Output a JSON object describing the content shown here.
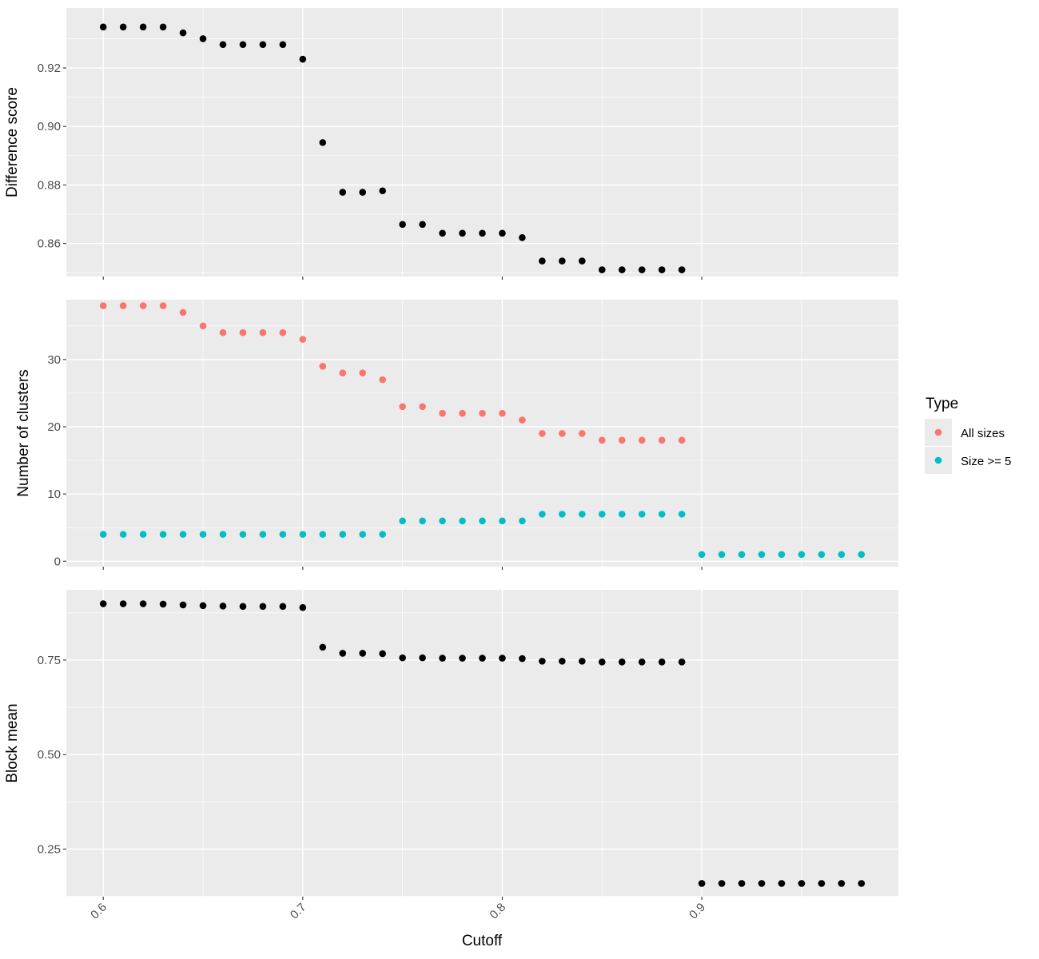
{
  "chart_data": {
    "type": "scatter",
    "x_label": "Cutoff",
    "x_ticks": [
      "0.6",
      "0.7",
      "0.8",
      "0.9"
    ],
    "x_tick_values": [
      0.6,
      0.7,
      0.8,
      0.9
    ],
    "xlim": [
      0.5815,
      0.9985
    ],
    "colors": {
      "black": "#000000",
      "all_sizes": "#F8766D",
      "size_ge_5": "#00BFC4"
    },
    "legend": {
      "title": "Type",
      "position": "right",
      "entries": [
        {
          "label": "All sizes",
          "color": "#F8766D"
        },
        {
          "label": "Size >= 5",
          "color": "#00BFC4"
        }
      ]
    },
    "panels": [
      {
        "ylabel": "Difference score",
        "ylim": [
          0.8487,
          0.9405
        ],
        "y_ticks": [
          "0.86",
          "0.88",
          "0.90",
          "0.92"
        ],
        "y_tick_values": [
          0.86,
          0.88,
          0.9,
          0.92
        ],
        "y_minor": [
          0.85,
          0.87,
          0.89,
          0.91,
          0.93
        ],
        "series": [
          {
            "color": "#000000",
            "x": [
              0.6,
              0.61,
              0.62,
              0.63,
              0.64,
              0.65,
              0.66,
              0.67,
              0.68,
              0.69,
              0.7,
              0.71,
              0.72,
              0.73,
              0.74,
              0.75,
              0.76,
              0.77,
              0.78,
              0.79,
              0.8,
              0.81,
              0.82,
              0.83,
              0.84,
              0.85,
              0.86,
              0.87,
              0.88,
              0.89
            ],
            "y": [
              0.934,
              0.934,
              0.934,
              0.934,
              0.932,
              0.93,
              0.928,
              0.928,
              0.928,
              0.928,
              0.923,
              0.8945,
              0.8775,
              0.8775,
              0.878,
              0.8665,
              0.8665,
              0.8635,
              0.8635,
              0.8635,
              0.8635,
              0.862,
              0.854,
              0.854,
              0.854,
              0.851,
              0.851,
              0.851,
              0.851,
              0.851
            ]
          }
        ]
      },
      {
        "ylabel": "Number of clusters",
        "ylim": [
          -0.8,
          38.9
        ],
        "y_ticks": [
          "0",
          "10",
          "20",
          "30"
        ],
        "y_tick_values": [
          0,
          10,
          20,
          30
        ],
        "y_minor": [
          5,
          15,
          25,
          35
        ],
        "series": [
          {
            "name": "All sizes",
            "color": "#F8766D",
            "x": [
              0.6,
              0.61,
              0.62,
              0.63,
              0.64,
              0.65,
              0.66,
              0.67,
              0.68,
              0.69,
              0.7,
              0.71,
              0.72,
              0.73,
              0.74,
              0.75,
              0.76,
              0.77,
              0.78,
              0.79,
              0.8,
              0.81,
              0.82,
              0.83,
              0.84,
              0.85,
              0.86,
              0.87,
              0.88,
              0.89
            ],
            "y": [
              38,
              38,
              38,
              38,
              37,
              35,
              34,
              34,
              34,
              34,
              33,
              29,
              28,
              28,
              27,
              23,
              23,
              22,
              22,
              22,
              22,
              21,
              19,
              19,
              19,
              18,
              18,
              18,
              18,
              18
            ]
          },
          {
            "name": "Size >= 5",
            "color": "#00BFC4",
            "x": [
              0.6,
              0.61,
              0.62,
              0.63,
              0.64,
              0.65,
              0.66,
              0.67,
              0.68,
              0.69,
              0.7,
              0.71,
              0.72,
              0.73,
              0.74,
              0.75,
              0.76,
              0.77,
              0.78,
              0.79,
              0.8,
              0.81,
              0.82,
              0.83,
              0.84,
              0.85,
              0.86,
              0.87,
              0.88,
              0.89,
              0.9,
              0.91,
              0.92,
              0.93,
              0.94,
              0.95,
              0.96,
              0.97,
              0.98
            ],
            "y": [
              4,
              4,
              4,
              4,
              4,
              4,
              4,
              4,
              4,
              4,
              4,
              4,
              4,
              4,
              4,
              6,
              6,
              6,
              6,
              6,
              6,
              6,
              7,
              7,
              7,
              7,
              7,
              7,
              7,
              7,
              1,
              1,
              1,
              1,
              1,
              1,
              1,
              1,
              1
            ]
          }
        ]
      },
      {
        "ylabel": "Block mean",
        "ylim": [
          0.124,
          0.936
        ],
        "y_ticks": [
          "0.25",
          "0.50",
          "0.75"
        ],
        "y_tick_values": [
          0.25,
          0.5,
          0.75
        ],
        "y_minor": [
          0.125,
          0.375,
          0.625,
          0.875
        ],
        "series": [
          {
            "color": "#000000",
            "x": [
              0.6,
              0.61,
              0.62,
              0.63,
              0.64,
              0.65,
              0.66,
              0.67,
              0.68,
              0.69,
              0.7,
              0.71,
              0.72,
              0.73,
              0.74,
              0.75,
              0.76,
              0.77,
              0.78,
              0.79,
              0.8,
              0.81,
              0.82,
              0.83,
              0.84,
              0.85,
              0.86,
              0.87,
              0.88,
              0.89,
              0.9,
              0.91,
              0.92,
              0.93,
              0.94,
              0.95,
              0.96,
              0.97,
              0.98
            ],
            "y": [
              0.899,
              0.899,
              0.899,
              0.898,
              0.896,
              0.894,
              0.893,
              0.892,
              0.892,
              0.892,
              0.889,
              0.784,
              0.768,
              0.768,
              0.767,
              0.756,
              0.756,
              0.755,
              0.755,
              0.755,
              0.755,
              0.754,
              0.747,
              0.747,
              0.747,
              0.745,
              0.745,
              0.745,
              0.745,
              0.745,
              0.159,
              0.159,
              0.159,
              0.159,
              0.159,
              0.159,
              0.159,
              0.159,
              0.159
            ]
          }
        ]
      }
    ]
  }
}
